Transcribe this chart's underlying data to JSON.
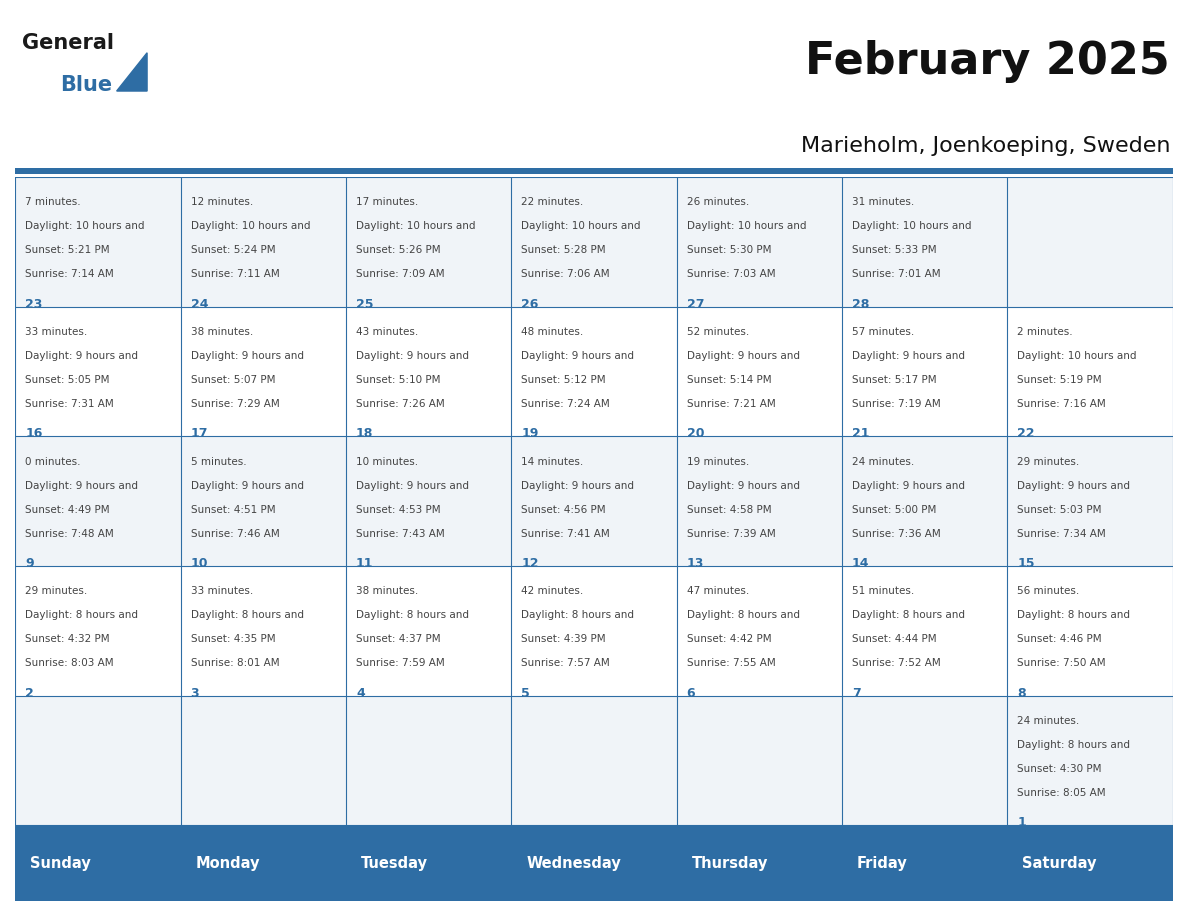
{
  "title": "February 2025",
  "subtitle": "Marieholm, Joenkoeping, Sweden",
  "days_of_week": [
    "Sunday",
    "Monday",
    "Tuesday",
    "Wednesday",
    "Thursday",
    "Friday",
    "Saturday"
  ],
  "header_bg": "#2E6DA4",
  "header_text": "#FFFFFF",
  "cell_bg_odd": "#F0F4F8",
  "cell_bg_even": "#FFFFFF",
  "border_color": "#2E6DA4",
  "text_color": "#444444",
  "day_num_color": "#2E6DA4",
  "logo_general_color": "#1a1a1a",
  "logo_blue_color": "#2E6DA4",
  "calendar_data": [
    {
      "day": 1,
      "week": 0,
      "dow": 6,
      "sunrise": "8:05 AM",
      "sunset": "4:30 PM",
      "daylight": "8 hours and 24 minutes."
    },
    {
      "day": 2,
      "week": 1,
      "dow": 0,
      "sunrise": "8:03 AM",
      "sunset": "4:32 PM",
      "daylight": "8 hours and 29 minutes."
    },
    {
      "day": 3,
      "week": 1,
      "dow": 1,
      "sunrise": "8:01 AM",
      "sunset": "4:35 PM",
      "daylight": "8 hours and 33 minutes."
    },
    {
      "day": 4,
      "week": 1,
      "dow": 2,
      "sunrise": "7:59 AM",
      "sunset": "4:37 PM",
      "daylight": "8 hours and 38 minutes."
    },
    {
      "day": 5,
      "week": 1,
      "dow": 3,
      "sunrise": "7:57 AM",
      "sunset": "4:39 PM",
      "daylight": "8 hours and 42 minutes."
    },
    {
      "day": 6,
      "week": 1,
      "dow": 4,
      "sunrise": "7:55 AM",
      "sunset": "4:42 PM",
      "daylight": "8 hours and 47 minutes."
    },
    {
      "day": 7,
      "week": 1,
      "dow": 5,
      "sunrise": "7:52 AM",
      "sunset": "4:44 PM",
      "daylight": "8 hours and 51 minutes."
    },
    {
      "day": 8,
      "week": 1,
      "dow": 6,
      "sunrise": "7:50 AM",
      "sunset": "4:46 PM",
      "daylight": "8 hours and 56 minutes."
    },
    {
      "day": 9,
      "week": 2,
      "dow": 0,
      "sunrise": "7:48 AM",
      "sunset": "4:49 PM",
      "daylight": "9 hours and 0 minutes."
    },
    {
      "day": 10,
      "week": 2,
      "dow": 1,
      "sunrise": "7:46 AM",
      "sunset": "4:51 PM",
      "daylight": "9 hours and 5 minutes."
    },
    {
      "day": 11,
      "week": 2,
      "dow": 2,
      "sunrise": "7:43 AM",
      "sunset": "4:53 PM",
      "daylight": "9 hours and 10 minutes."
    },
    {
      "day": 12,
      "week": 2,
      "dow": 3,
      "sunrise": "7:41 AM",
      "sunset": "4:56 PM",
      "daylight": "9 hours and 14 minutes."
    },
    {
      "day": 13,
      "week": 2,
      "dow": 4,
      "sunrise": "7:39 AM",
      "sunset": "4:58 PM",
      "daylight": "9 hours and 19 minutes."
    },
    {
      "day": 14,
      "week": 2,
      "dow": 5,
      "sunrise": "7:36 AM",
      "sunset": "5:00 PM",
      "daylight": "9 hours and 24 minutes."
    },
    {
      "day": 15,
      "week": 2,
      "dow": 6,
      "sunrise": "7:34 AM",
      "sunset": "5:03 PM",
      "daylight": "9 hours and 29 minutes."
    },
    {
      "day": 16,
      "week": 3,
      "dow": 0,
      "sunrise": "7:31 AM",
      "sunset": "5:05 PM",
      "daylight": "9 hours and 33 minutes."
    },
    {
      "day": 17,
      "week": 3,
      "dow": 1,
      "sunrise": "7:29 AM",
      "sunset": "5:07 PM",
      "daylight": "9 hours and 38 minutes."
    },
    {
      "day": 18,
      "week": 3,
      "dow": 2,
      "sunrise": "7:26 AM",
      "sunset": "5:10 PM",
      "daylight": "9 hours and 43 minutes."
    },
    {
      "day": 19,
      "week": 3,
      "dow": 3,
      "sunrise": "7:24 AM",
      "sunset": "5:12 PM",
      "daylight": "9 hours and 48 minutes."
    },
    {
      "day": 20,
      "week": 3,
      "dow": 4,
      "sunrise": "7:21 AM",
      "sunset": "5:14 PM",
      "daylight": "9 hours and 52 minutes."
    },
    {
      "day": 21,
      "week": 3,
      "dow": 5,
      "sunrise": "7:19 AM",
      "sunset": "5:17 PM",
      "daylight": "9 hours and 57 minutes."
    },
    {
      "day": 22,
      "week": 3,
      "dow": 6,
      "sunrise": "7:16 AM",
      "sunset": "5:19 PM",
      "daylight": "10 hours and 2 minutes."
    },
    {
      "day": 23,
      "week": 4,
      "dow": 0,
      "sunrise": "7:14 AM",
      "sunset": "5:21 PM",
      "daylight": "10 hours and 7 minutes."
    },
    {
      "day": 24,
      "week": 4,
      "dow": 1,
      "sunrise": "7:11 AM",
      "sunset": "5:24 PM",
      "daylight": "10 hours and 12 minutes."
    },
    {
      "day": 25,
      "week": 4,
      "dow": 2,
      "sunrise": "7:09 AM",
      "sunset": "5:26 PM",
      "daylight": "10 hours and 17 minutes."
    },
    {
      "day": 26,
      "week": 4,
      "dow": 3,
      "sunrise": "7:06 AM",
      "sunset": "5:28 PM",
      "daylight": "10 hours and 22 minutes."
    },
    {
      "day": 27,
      "week": 4,
      "dow": 4,
      "sunrise": "7:03 AM",
      "sunset": "5:30 PM",
      "daylight": "10 hours and 26 minutes."
    },
    {
      "day": 28,
      "week": 4,
      "dow": 5,
      "sunrise": "7:01 AM",
      "sunset": "5:33 PM",
      "daylight": "10 hours and 31 minutes."
    }
  ]
}
